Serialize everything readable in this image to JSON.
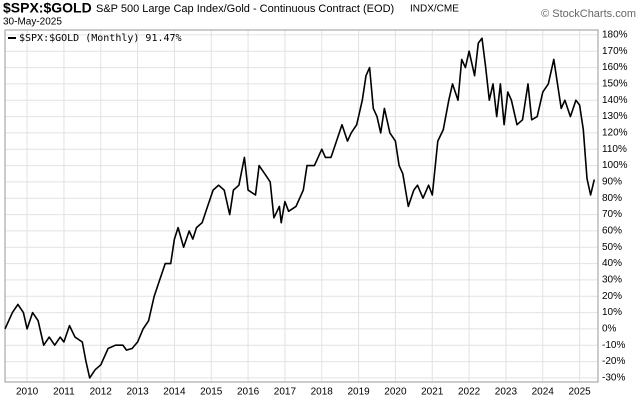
{
  "chart_data": {
    "type": "line",
    "title": "$SPX:$GOLD",
    "subtitle": "S&P 500 Large Cap Index/Gold - Continuous Contract (EOD)",
    "exchange": "INDX/CME",
    "date": "30-May-2025",
    "watermark": "© StockCharts.com",
    "legend_label": "$SPX:$GOLD (Monthly) 91.47%",
    "grid": true,
    "series": [
      {
        "name": "$SPX:$GOLD",
        "color": "#000000",
        "x": [
          2009.4,
          2009.6,
          2009.75,
          2009.9,
          2010.0,
          2010.15,
          2010.3,
          2010.45,
          2010.6,
          2010.75,
          2010.9,
          2011.0,
          2011.15,
          2011.3,
          2011.5,
          2011.6,
          2011.7,
          2011.85,
          2012.0,
          2012.2,
          2012.4,
          2012.6,
          2012.7,
          2012.85,
          2013.0,
          2013.15,
          2013.3,
          2013.45,
          2013.6,
          2013.75,
          2013.9,
          2014.0,
          2014.1,
          2014.25,
          2014.4,
          2014.5,
          2014.6,
          2014.75,
          2014.9,
          2015.05,
          2015.2,
          2015.35,
          2015.5,
          2015.6,
          2015.75,
          2015.9,
          2016.0,
          2016.2,
          2016.3,
          2016.45,
          2016.6,
          2016.7,
          2016.85,
          2016.9,
          2017.0,
          2017.1,
          2017.3,
          2017.5,
          2017.6,
          2017.8,
          2017.9,
          2018.0,
          2018.1,
          2018.25,
          2018.4,
          2018.55,
          2018.7,
          2018.8,
          2018.95,
          2019.1,
          2019.2,
          2019.3,
          2019.4,
          2019.5,
          2019.6,
          2019.7,
          2019.85,
          2020.0,
          2020.1,
          2020.2,
          2020.35,
          2020.5,
          2020.6,
          2020.75,
          2020.9,
          2021.0,
          2021.15,
          2021.3,
          2021.45,
          2021.55,
          2021.7,
          2021.8,
          2021.9,
          2022.0,
          2022.15,
          2022.25,
          2022.35,
          2022.45,
          2022.55,
          2022.65,
          2022.75,
          2022.85,
          2022.95,
          2023.05,
          2023.15,
          2023.3,
          2023.45,
          2023.6,
          2023.7,
          2023.85,
          2024.0,
          2024.15,
          2024.3,
          2024.4,
          2024.5,
          2024.6,
          2024.75,
          2024.9,
          2025.0,
          2025.1,
          2025.2,
          2025.3,
          2025.4
        ],
        "values": [
          0,
          10,
          15,
          10,
          0,
          10,
          5,
          -10,
          -5,
          -10,
          -5,
          -8,
          2,
          -5,
          -8,
          -20,
          -30,
          -25,
          -22,
          -12,
          -10,
          -10,
          -13,
          -12,
          -8,
          0,
          5,
          20,
          30,
          40,
          40,
          55,
          62,
          50,
          60,
          55,
          62,
          65,
          75,
          85,
          88,
          85,
          70,
          85,
          88,
          105,
          85,
          82,
          100,
          95,
          90,
          68,
          75,
          65,
          78,
          72,
          75,
          85,
          100,
          100,
          105,
          110,
          105,
          105,
          115,
          125,
          115,
          120,
          125,
          140,
          155,
          160,
          135,
          130,
          120,
          135,
          120,
          115,
          100,
          95,
          75,
          85,
          88,
          80,
          88,
          82,
          115,
          122,
          140,
          150,
          140,
          165,
          160,
          170,
          155,
          175,
          178,
          160,
          140,
          150,
          130,
          150,
          125,
          145,
          140,
          125,
          128,
          150,
          128,
          130,
          145,
          150,
          165,
          150,
          135,
          140,
          130,
          140,
          137,
          122,
          92,
          82,
          91.47
        ]
      }
    ],
    "xlim": [
      2009.4,
      2025.5
    ],
    "xticks": [
      2010,
      2011,
      2012,
      2013,
      2014,
      2015,
      2016,
      2017,
      2018,
      2019,
      2020,
      2021,
      2022,
      2023,
      2024,
      2025
    ],
    "ylim": [
      -32.5,
      183
    ],
    "yticks": [
      {
        "value": -30,
        "label": "-30%"
      },
      {
        "value": -20,
        "label": "-20%"
      },
      {
        "value": -10,
        "label": "-10%"
      },
      {
        "value": 0,
        "label": "0%"
      },
      {
        "value": 10,
        "label": "10%"
      },
      {
        "value": 20,
        "label": "20%"
      },
      {
        "value": 30,
        "label": "30%"
      },
      {
        "value": 40,
        "label": "40%"
      },
      {
        "value": 50,
        "label": "50%"
      },
      {
        "value": 60,
        "label": "60%"
      },
      {
        "value": 70,
        "label": "70%"
      },
      {
        "value": 80,
        "label": "80%"
      },
      {
        "value": 90,
        "label": "90%"
      },
      {
        "value": 100,
        "label": "100%"
      },
      {
        "value": 110,
        "label": "110%"
      },
      {
        "value": 120,
        "label": "120%"
      },
      {
        "value": 130,
        "label": "130%"
      },
      {
        "value": 140,
        "label": "140%"
      },
      {
        "value": 150,
        "label": "150%"
      },
      {
        "value": 160,
        "label": "160%"
      },
      {
        "value": 170,
        "label": "170%"
      },
      {
        "value": 180,
        "label": "180%"
      }
    ]
  }
}
